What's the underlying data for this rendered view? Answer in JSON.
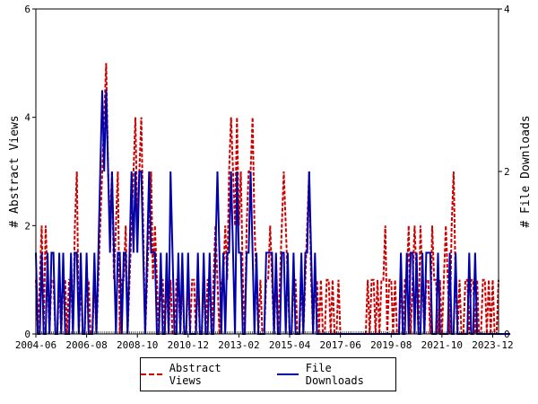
{
  "chart_data": {
    "type": "line",
    "title": "",
    "xlabel": "",
    "ylabel_left": "# Abstract Views",
    "ylabel_right": "# File Downloads",
    "x_ticks": [
      "2004-06",
      "2006-08",
      "2008-10",
      "2010-12",
      "2013-02",
      "2015-04",
      "2017-06",
      "2019-08",
      "2021-10",
      "2023-12"
    ],
    "x_start_month": "2004-06",
    "y_left_ticks": [
      0,
      2,
      4,
      6
    ],
    "y_right_ticks": [
      0,
      2,
      4
    ],
    "ylim_left": [
      0,
      6
    ],
    "ylim_right": [
      0,
      4
    ],
    "legend_position": "bottom",
    "series": [
      {
        "name": "Abstract Views",
        "axis": "left",
        "color": "#cc0000",
        "style": "dashed",
        "values": [
          1,
          0,
          1,
          2,
          0,
          2,
          1,
          0,
          1,
          1,
          0,
          0,
          1,
          0,
          1,
          1,
          0,
          1,
          1,
          0,
          2,
          3,
          0,
          1,
          0,
          0,
          1,
          1,
          0,
          0,
          1,
          0,
          1,
          2,
          3,
          4,
          5,
          3,
          2,
          3,
          1,
          2,
          3,
          0,
          1,
          1,
          2,
          0,
          1,
          2,
          3,
          4,
          2,
          3,
          4,
          2,
          0,
          1,
          2,
          3,
          1,
          2,
          1,
          0,
          1,
          1,
          0,
          1,
          0,
          1,
          0,
          0,
          1,
          1,
          0,
          1,
          0,
          0,
          1,
          0,
          1,
          1,
          0,
          1,
          0,
          0,
          1,
          0,
          1,
          1,
          0,
          1,
          2,
          1,
          0,
          1,
          1,
          2,
          1,
          3,
          4,
          3,
          2,
          4,
          2,
          3,
          1,
          0,
          2,
          3,
          3,
          4,
          2,
          1,
          0,
          1,
          0,
          0,
          1,
          1,
          2,
          1,
          0,
          1,
          0,
          1,
          2,
          3,
          2,
          1,
          0,
          0,
          1,
          1,
          0,
          0,
          1,
          0,
          1,
          2,
          3,
          1,
          0,
          1,
          1,
          0,
          1,
          0,
          0,
          1,
          1,
          0,
          1,
          0,
          0,
          1,
          0,
          0,
          0,
          0,
          0,
          0,
          0,
          0,
          0,
          0,
          0,
          0,
          0,
          0,
          1,
          0,
          1,
          1,
          0,
          1,
          0,
          1,
          1,
          2,
          0,
          1,
          1,
          0,
          1,
          0,
          0,
          1,
          0,
          1,
          1,
          2,
          0,
          1,
          2,
          1,
          0,
          2,
          1,
          0,
          1,
          1,
          0,
          2,
          1,
          1,
          0,
          1,
          0,
          1,
          2,
          1,
          0,
          2,
          3,
          1,
          0,
          1,
          0,
          0,
          1,
          1,
          0,
          1,
          1,
          0,
          1,
          0,
          0,
          1,
          1,
          0,
          1,
          0,
          1,
          0,
          0,
          1
        ]
      },
      {
        "name": "File Downloads",
        "axis": "right",
        "color": "#0000aa",
        "style": "solid",
        "values": [
          1,
          0,
          0,
          1,
          0,
          0,
          1,
          0,
          1,
          1,
          0,
          0,
          1,
          0,
          1,
          0,
          0,
          0,
          1,
          0,
          1,
          1,
          0,
          1,
          0,
          0,
          1,
          0,
          0,
          0,
          1,
          0,
          1,
          2,
          3,
          2,
          3,
          2,
          1,
          2,
          1,
          0,
          1,
          1,
          0,
          1,
          1,
          0,
          1,
          2,
          1,
          2,
          1,
          2,
          2,
          1,
          0,
          1,
          2,
          1,
          1,
          1,
          0,
          0,
          1,
          0,
          0,
          1,
          0,
          2,
          1,
          0,
          0,
          1,
          0,
          1,
          0,
          0,
          1,
          0,
          0,
          0,
          0,
          1,
          0,
          0,
          1,
          0,
          0,
          1,
          0,
          0,
          1,
          2,
          1,
          0,
          1,
          0,
          1,
          1,
          2,
          1,
          0,
          2,
          1,
          1,
          0,
          0,
          1,
          1,
          2,
          1,
          0,
          1,
          0,
          0,
          0,
          0,
          1,
          1,
          1,
          1,
          0,
          1,
          0,
          0,
          1,
          1,
          0,
          1,
          0,
          0,
          1,
          0,
          0,
          0,
          1,
          0,
          1,
          1,
          2,
          1,
          0,
          1,
          0,
          0,
          0,
          0,
          0,
          0,
          0,
          0,
          0,
          0,
          0,
          0,
          0,
          0,
          0,
          0,
          0,
          0,
          0,
          0,
          0,
          0,
          0,
          0,
          0,
          0,
          0,
          0,
          0,
          0,
          0,
          0,
          0,
          0,
          0,
          0,
          0,
          0,
          0,
          0,
          0,
          0,
          0,
          1,
          0,
          0,
          1,
          0,
          1,
          1,
          0,
          1,
          0,
          0,
          1,
          0,
          1,
          1,
          1,
          0,
          0,
          0,
          1,
          0,
          0,
          0,
          0,
          0,
          1,
          0,
          0,
          1,
          0,
          0,
          0,
          0,
          0,
          0,
          1,
          0,
          0,
          1,
          0,
          0,
          0,
          0,
          0,
          0,
          0,
          0,
          0,
          0,
          0,
          0,
          0,
          0,
          0,
          0,
          0,
          0
        ]
      }
    ]
  }
}
